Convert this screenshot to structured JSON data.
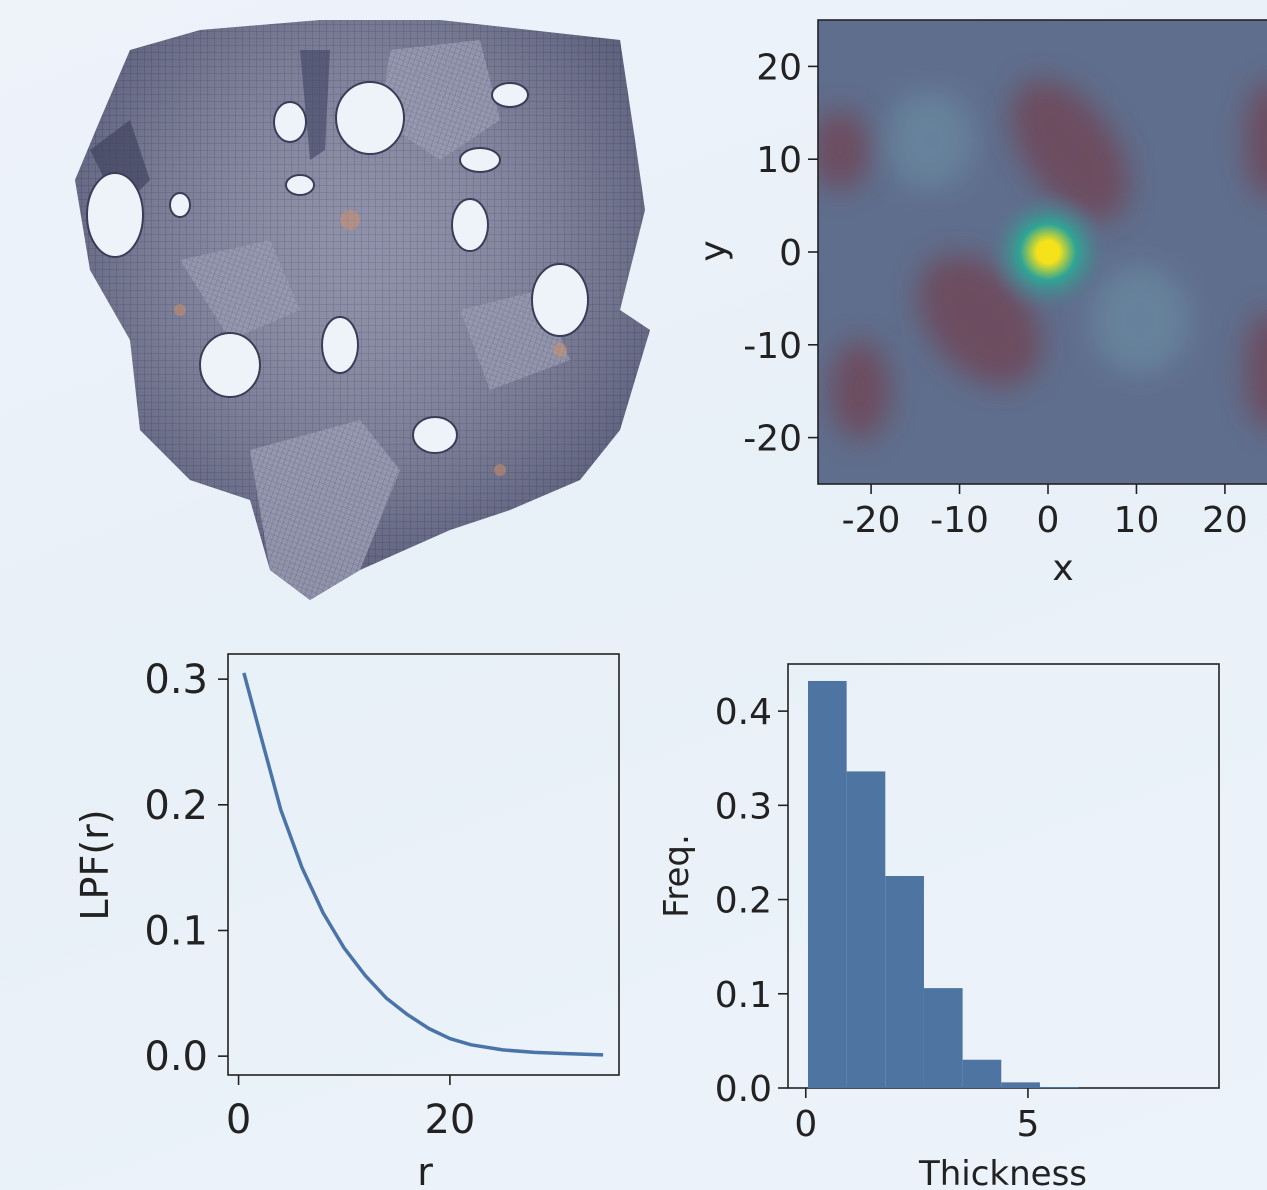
{
  "render": {
    "title": "",
    "description": ""
  },
  "chart_data": [
    {
      "type": "heatmap",
      "title": "",
      "xlabel": "x",
      "ylabel": "y",
      "xlim": [
        -26,
        26
      ],
      "ylim": [
        -25,
        25
      ],
      "xticks": [
        -20,
        -10,
        0,
        10,
        20
      ],
      "yticks": [
        20,
        10,
        0,
        -10,
        -20
      ],
      "xtick_labels": [
        "-20",
        "-10",
        "0",
        "10",
        "20"
      ],
      "ytick_labels": [
        "20",
        "10",
        "0",
        "-10",
        "-20"
      ],
      "peak": {
        "x": 0,
        "y": 0
      },
      "colors": {
        "peak": "#f5e21a",
        "mid": "#2fa595",
        "background": "#5f6e8c",
        "trough": "#6e4a5c"
      }
    },
    {
      "type": "line",
      "title": "",
      "xlabel": "r",
      "ylabel": "LPF(r)",
      "xlim": [
        -1,
        36
      ],
      "ylim": [
        -0.015,
        0.32
      ],
      "xticks": [
        0,
        20
      ],
      "yticks": [
        0.0,
        0.1,
        0.2,
        0.3
      ],
      "xtick_labels": [
        "0",
        "20"
      ],
      "ytick_labels": [
        "0.0",
        "0.1",
        "0.2",
        "0.3"
      ],
      "series": [
        {
          "color": "#4a74a8",
          "x": [
            0.5,
            2,
            4,
            6,
            8,
            10,
            12,
            14,
            16,
            18,
            20,
            22,
            25,
            28,
            31,
            34.5
          ],
          "y": [
            0.305,
            0.258,
            0.196,
            0.15,
            0.114,
            0.086,
            0.064,
            0.046,
            0.033,
            0.022,
            0.014,
            0.009,
            0.005,
            0.003,
            0.002,
            0.001
          ]
        }
      ]
    },
    {
      "type": "bar",
      "title": "",
      "xlabel": "Thickness",
      "ylabel": "Freq.",
      "xlim": [
        -0.4,
        9.3
      ],
      "ylim": [
        0,
        0.45
      ],
      "xticks": [
        0,
        5
      ],
      "yticks": [
        0.0,
        0.1,
        0.2,
        0.3,
        0.4
      ],
      "xtick_labels": [
        "0",
        "5"
      ],
      "ytick_labels": [
        "0.0",
        "0.1",
        "0.2",
        "0.3",
        "0.4"
      ],
      "bar_color": "#4e74a2",
      "bins": [
        [
          0.05,
          0.92
        ],
        [
          0.92,
          1.79
        ],
        [
          1.79,
          2.66
        ],
        [
          2.66,
          3.53
        ],
        [
          3.53,
          4.4
        ],
        [
          4.4,
          5.27
        ],
        [
          5.27,
          6.14
        ]
      ],
      "values": [
        0.432,
        0.336,
        0.225,
        0.106,
        0.03,
        0.006,
        0.001
      ]
    }
  ]
}
